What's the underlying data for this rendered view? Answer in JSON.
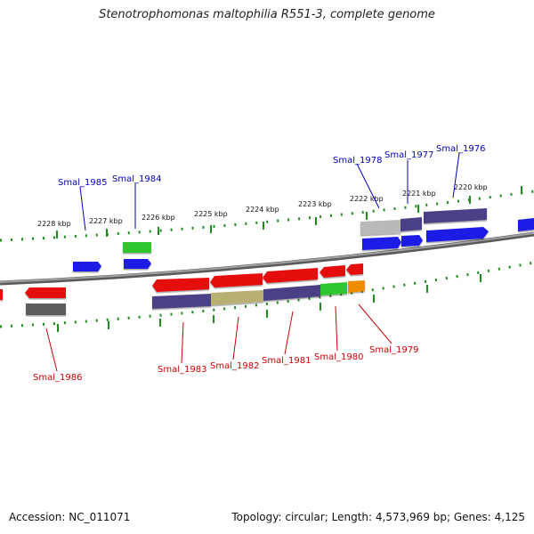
{
  "title": "Stenotrophomonas maltophilia R551-3, complete genome",
  "footer": {
    "accession": "Accession: NC_011071",
    "summary": "Topology: circular; Length: 4,573,969 bp; Genes: 4,125"
  },
  "colors": {
    "forward_label": "#0000bb",
    "reverse_label": "#cc0000",
    "tick": "#1e8c1e",
    "backbone": "#777777",
    "blue": "#1f1fe6",
    "red": "#e60d0d",
    "green": "#2ec52e",
    "navy": "#4a3f86",
    "gray": "#b9b9b9",
    "darkgray": "#5b5b5b",
    "khaki": "#b8b072",
    "orange": "#f08c00"
  },
  "kbp_ticks": [
    "2228 kbp",
    "2227 kbp",
    "2226 kbp",
    "2225 kbp",
    "2224 kbp",
    "2223 kbp",
    "2222 kbp",
    "2221 kbp",
    "2220 kbp"
  ],
  "forward_labels": [
    "Smal_1985",
    "Smal_1984",
    "Smal_1978",
    "Smal_1977",
    "Smal_1976"
  ],
  "reverse_labels": [
    "Smal_1986",
    "Smal_1983",
    "Smal_1982",
    "Smal_1981",
    "Smal_1980",
    "Smal_1979"
  ]
}
